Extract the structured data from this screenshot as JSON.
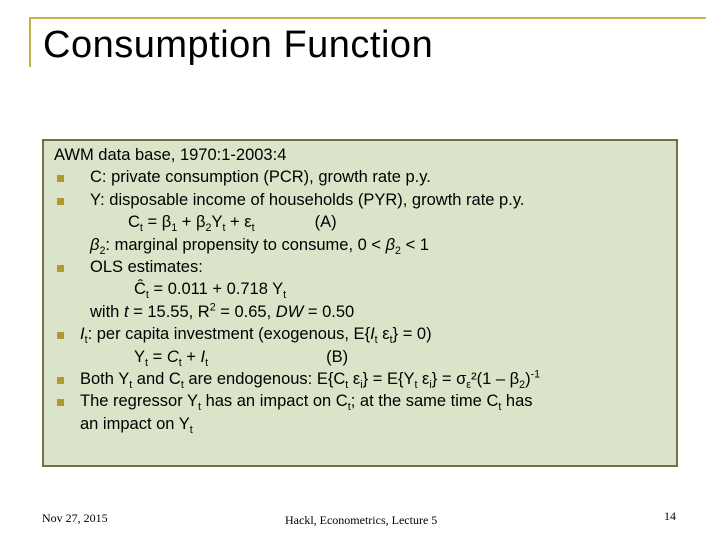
{
  "title": "Consumption Function",
  "colors": {
    "accent": "#c8b24a",
    "panel_bg": "#d9e4c8",
    "panel_border": "#6b7446",
    "bullet": "#b09a2a"
  },
  "content": {
    "intro": "AWM  data base, 1970:1-2003:4",
    "bullet1": "C: private consumption (PCR), growth rate p.y.",
    "bullet2": "Y: disposable income of households (PYR), growth rate p.y.",
    "eqA_label": "(A)",
    "mpc_text": ": marginal propensity to consume, 0 < ",
    "bullet3": "OLS estimates:",
    "ols_eq": "= 0.011 + 0.718 Y",
    "ols_stats_prefix": "with ",
    "ols_stats": " = 15.55, R",
    "ols_stats2": " = 0.65, ",
    "ols_dw": " = 0.50",
    "bullet4": ": per capita investment (exogenous, E{",
    "bullet4_end": "} = 0)",
    "eqB_label": "(B)",
    "bullet5": "Both Y",
    "bullet5_b": " and C",
    "bullet5_c": " are endogenous: E{C",
    "bullet5_d": "} = E{Y",
    "bullet5_e": "} = σ",
    "bullet5_f": "²(1 – β",
    "bullet5_g": ")",
    "bullet6_a": "The regressor Y",
    "bullet6_b": " has an impact on C",
    "bullet6_c": "; at the same time C",
    "bullet6_d": " has",
    "bullet6_line2": "an impact on Y"
  },
  "footer": {
    "date": "Nov 27, 2015",
    "center": "Hackl,  Econometrics, Lecture 5",
    "page": "14"
  }
}
